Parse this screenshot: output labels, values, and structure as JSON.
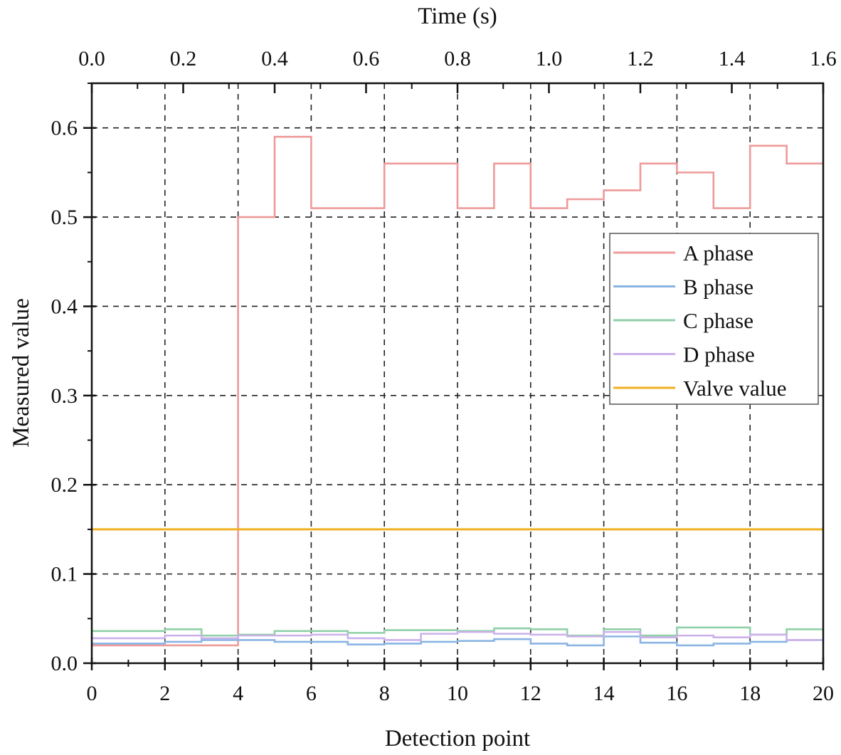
{
  "chart_data": {
    "type": "line",
    "step": true,
    "xlabel": "Detection point",
    "x2label": "Time (s)",
    "ylabel": "Measured value",
    "xlim": [
      0,
      20
    ],
    "x2lim": [
      0.0,
      1.6
    ],
    "ylim": [
      0,
      0.65
    ],
    "xticks": [
      "0",
      "2",
      "4",
      "6",
      "8",
      "10",
      "12",
      "14",
      "16",
      "18",
      "20"
    ],
    "x2ticks": [
      "0.0",
      "0.2",
      "0.4",
      "0.6",
      "0.8",
      "1.0",
      "1.2",
      "1.4",
      "1.6"
    ],
    "yticks": [
      "0.0",
      "0.1",
      "0.2",
      "0.3",
      "0.4",
      "0.5",
      "0.6"
    ],
    "grid": true,
    "legend_position": "right",
    "x": [
      0,
      1,
      2,
      3,
      4,
      5,
      6,
      7,
      8,
      9,
      10,
      11,
      12,
      13,
      14,
      15,
      16,
      17,
      18,
      19,
      20
    ],
    "series": [
      {
        "name": "A phase",
        "color": "#ee9a9a",
        "values": [
          0.02,
          0.02,
          0.02,
          0.02,
          0.5,
          0.59,
          0.51,
          0.51,
          0.56,
          0.56,
          0.51,
          0.56,
          0.51,
          0.52,
          0.53,
          0.56,
          0.55,
          0.51,
          0.58,
          0.56,
          0.56
        ]
      },
      {
        "name": "B phase",
        "color": "#8ab4e4",
        "values": [
          0.022,
          0.022,
          0.024,
          0.026,
          0.026,
          0.024,
          0.024,
          0.021,
          0.022,
          0.024,
          0.025,
          0.027,
          0.022,
          0.02,
          0.03,
          0.023,
          0.02,
          0.022,
          0.024,
          0.026,
          0.026
        ]
      },
      {
        "name": "C phase",
        "color": "#8fd0a8",
        "values": [
          0.036,
          0.036,
          0.038,
          0.031,
          0.032,
          0.036,
          0.036,
          0.034,
          0.037,
          0.037,
          0.036,
          0.039,
          0.038,
          0.031,
          0.038,
          0.031,
          0.04,
          0.04,
          0.032,
          0.038,
          0.038
        ]
      },
      {
        "name": "D phase",
        "color": "#cbb0ea",
        "values": [
          0.028,
          0.028,
          0.031,
          0.028,
          0.031,
          0.031,
          0.032,
          0.028,
          0.026,
          0.033,
          0.035,
          0.033,
          0.032,
          0.03,
          0.035,
          0.029,
          0.031,
          0.029,
          0.032,
          0.026,
          0.026
        ]
      },
      {
        "name": "Valve value",
        "color": "#f0b020",
        "values": [
          0.15,
          0.15,
          0.15,
          0.15,
          0.15,
          0.15,
          0.15,
          0.15,
          0.15,
          0.15,
          0.15,
          0.15,
          0.15,
          0.15,
          0.15,
          0.15,
          0.15,
          0.15,
          0.15,
          0.15,
          0.15
        ]
      }
    ]
  }
}
